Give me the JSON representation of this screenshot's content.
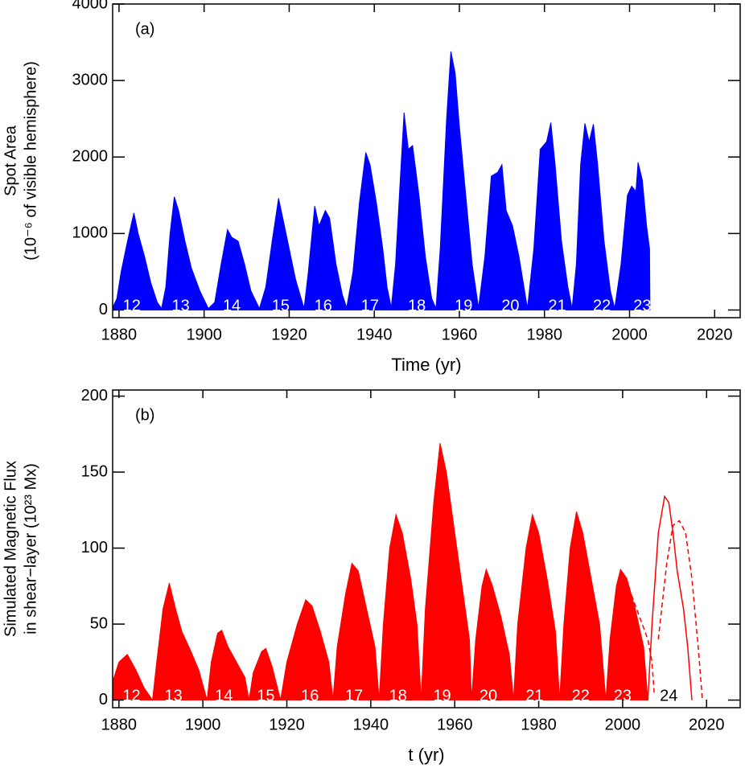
{
  "chart_data": [
    {
      "type": "area",
      "title": "(a)",
      "xlabel": "Time (yr)",
      "ylabel": [
        "Spot Area",
        "(10⁻⁶ of visible hemisphere)"
      ],
      "color": "#0000ff",
      "xlim": [
        1878.5,
        2026
      ],
      "ylim": [
        -100,
        4000
      ],
      "xticks": [
        1880,
        1900,
        1920,
        1940,
        1960,
        1980,
        2000,
        2020
      ],
      "yticks": [
        0,
        1000,
        2000,
        3000,
        4000
      ],
      "x": [
        1878.5,
        1879.5,
        1880.5,
        1882,
        1883.5,
        1884.5,
        1886,
        1887.5,
        1889,
        1890,
        1891,
        1892,
        1893,
        1894,
        1895.5,
        1897,
        1899,
        1901,
        1902.5,
        1904,
        1905.5,
        1906.5,
        1908,
        1909.5,
        1911,
        1913,
        1914.5,
        1916,
        1917.5,
        1918.5,
        1920,
        1921.5,
        1923.5,
        1924.5,
        1926,
        1927,
        1928.5,
        1929.5,
        1931,
        1932.5,
        1933.5,
        1935,
        1936.5,
        1938,
        1939,
        1940.5,
        1942,
        1943,
        1944,
        1945,
        1946,
        1947,
        1948,
        1949,
        1950.5,
        1952,
        1953.5,
        1954.5,
        1955.5,
        1957,
        1958,
        1959,
        1960,
        1961.5,
        1963,
        1964.5,
        1966,
        1967.5,
        1969,
        1970,
        1971,
        1972.5,
        1974,
        1976,
        1977.5,
        1979,
        1980.5,
        1981.5,
        1982.5,
        1984,
        1985.5,
        1986.5,
        1987.5,
        1988.5,
        1989.5,
        1990.5,
        1991.5,
        1992.5,
        1994,
        1995.5,
        1996.5,
        1998,
        1999.5,
        2000.5,
        2001.5,
        2002,
        2003,
        2004,
        2004.7,
        2004.8
      ],
      "values": [
        30,
        150,
        500,
        900,
        1270,
        1000,
        700,
        350,
        100,
        20,
        300,
        1000,
        1480,
        1300,
        900,
        550,
        250,
        20,
        100,
        600,
        1050,
        950,
        900,
        600,
        250,
        20,
        300,
        900,
        1460,
        1200,
        800,
        400,
        20,
        500,
        1360,
        1100,
        1300,
        1200,
        600,
        200,
        30,
        500,
        1400,
        2060,
        1900,
        1400,
        800,
        300,
        30,
        600,
        1600,
        2580,
        2100,
        2150,
        1500,
        700,
        150,
        20,
        800,
        2500,
        3380,
        3100,
        2400,
        1500,
        600,
        30,
        700,
        1750,
        1800,
        1900,
        1300,
        1100,
        700,
        20,
        800,
        2100,
        2200,
        2450,
        1900,
        900,
        300,
        20,
        600,
        1900,
        2440,
        2200,
        2430,
        1900,
        900,
        250,
        20,
        600,
        1500,
        1620,
        1550,
        1930,
        1700,
        1100,
        800,
        0
      ],
      "annotations": [
        {
          "text": "12",
          "x": 1883,
          "color": "#ffffff"
        },
        {
          "text": "13",
          "x": 1894.5,
          "color": "#ffffff"
        },
        {
          "text": "14",
          "x": 1906.5,
          "color": "#ffffff"
        },
        {
          "text": "15",
          "x": 1918,
          "color": "#ffffff"
        },
        {
          "text": "16",
          "x": 1928,
          "color": "#ffffff"
        },
        {
          "text": "17",
          "x": 1939,
          "color": "#ffffff"
        },
        {
          "text": "18",
          "x": 1950,
          "color": "#ffffff"
        },
        {
          "text": "19",
          "x": 1961,
          "color": "#ffffff"
        },
        {
          "text": "20",
          "x": 1972,
          "color": "#ffffff"
        },
        {
          "text": "21",
          "x": 1983,
          "color": "#ffffff"
        },
        {
          "text": "22",
          "x": 1993.5,
          "color": "#ffffff"
        },
        {
          "text": "23",
          "x": 2003,
          "color": "#ffffff"
        }
      ]
    },
    {
      "type": "area",
      "title": "(b)",
      "xlabel": "t (yr)",
      "ylabel": [
        "Simulated Magnetic Flux",
        "in shear−layer (10²³ Mx)"
      ],
      "color": "#ff0000",
      "xlim": [
        1878.5,
        2028
      ],
      "ylim": [
        -5,
        204
      ],
      "xticks": [
        1880,
        1900,
        1920,
        1940,
        1960,
        1980,
        2000,
        2020
      ],
      "yticks": [
        0,
        50,
        100,
        150,
        200
      ],
      "x": [
        1878.5,
        1880,
        1882,
        1884,
        1886,
        1888,
        1889,
        1890.5,
        1892,
        1893.5,
        1895,
        1897,
        1899,
        1901,
        1902,
        1903.5,
        1904.5,
        1906,
        1908,
        1910,
        1911,
        1912,
        1914,
        1915,
        1916.5,
        1918.5,
        1920,
        1922.5,
        1924.5,
        1926,
        1928,
        1930,
        1931,
        1932,
        1934,
        1935.5,
        1937,
        1939,
        1941,
        1942,
        1943,
        1944.5,
        1946,
        1947.5,
        1949.5,
        1951,
        1952,
        1953,
        1955,
        1956.5,
        1958,
        1960,
        1962,
        1963.5,
        1964,
        1965,
        1966.5,
        1967.5,
        1969,
        1971,
        1973,
        1974,
        1975,
        1977,
        1978.5,
        1980,
        1982,
        1984,
        1985,
        1986,
        1987.5,
        1989,
        1990.5,
        1992.5,
        1994.5,
        1996,
        1997,
        1998.5,
        1999.5,
        2001,
        2003,
        2005,
        2006
      ],
      "values": [
        12,
        25,
        30,
        20,
        8,
        0,
        25,
        60,
        77,
        60,
        45,
        33,
        20,
        0,
        25,
        44,
        46,
        35,
        25,
        15,
        0,
        18,
        32,
        34,
        22,
        0,
        25,
        50,
        66,
        62,
        45,
        25,
        0,
        35,
        70,
        90,
        85,
        60,
        35,
        0,
        50,
        100,
        122,
        110,
        80,
        50,
        0,
        60,
        130,
        169,
        150,
        110,
        70,
        40,
        0,
        40,
        75,
        86,
        75,
        55,
        30,
        0,
        50,
        100,
        122,
        110,
        80,
        45,
        0,
        50,
        100,
        124,
        110,
        80,
        50,
        0,
        40,
        75,
        86,
        80,
        60,
        35,
        0
      ],
      "lines": [
        {
          "style": "solid",
          "x": [
            2006,
            2007,
            2008.5,
            2010,
            2011,
            2012,
            2013,
            2014.5,
            2015.5,
            2016.5
          ],
          "values": [
            0,
            50,
            110,
            134,
            130,
            110,
            85,
            60,
            35,
            0
          ]
        },
        {
          "style": "dashed",
          "x": [
            2000,
            2002,
            2004,
            2006,
            2007,
            2007.5,
            null,
            2008.5,
            2010.5,
            2012,
            2013.5,
            2015,
            2016.5,
            2018,
            2019
          ],
          "values": [
            84,
            70,
            55,
            40,
            25,
            5,
            null,
            40,
            90,
            115,
            118,
            110,
            80,
            35,
            0
          ]
        }
      ],
      "annotations": [
        {
          "text": "12",
          "x": 1883,
          "color": "#ffffff"
        },
        {
          "text": "13",
          "x": 1893,
          "color": "#ffffff"
        },
        {
          "text": "14",
          "x": 1905,
          "color": "#ffffff"
        },
        {
          "text": "15",
          "x": 1915,
          "color": "#ffffff"
        },
        {
          "text": "16",
          "x": 1925.5,
          "color": "#ffffff"
        },
        {
          "text": "17",
          "x": 1936,
          "color": "#ffffff"
        },
        {
          "text": "18",
          "x": 1946.5,
          "color": "#ffffff"
        },
        {
          "text": "19",
          "x": 1957,
          "color": "#ffffff"
        },
        {
          "text": "20",
          "x": 1968,
          "color": "#ffffff"
        },
        {
          "text": "21",
          "x": 1979,
          "color": "#ffffff"
        },
        {
          "text": "22",
          "x": 1990,
          "color": "#ffffff"
        },
        {
          "text": "23",
          "x": 2000,
          "color": "#ffffff"
        },
        {
          "text": "24",
          "x": 2011,
          "color": "#000000"
        }
      ]
    }
  ]
}
